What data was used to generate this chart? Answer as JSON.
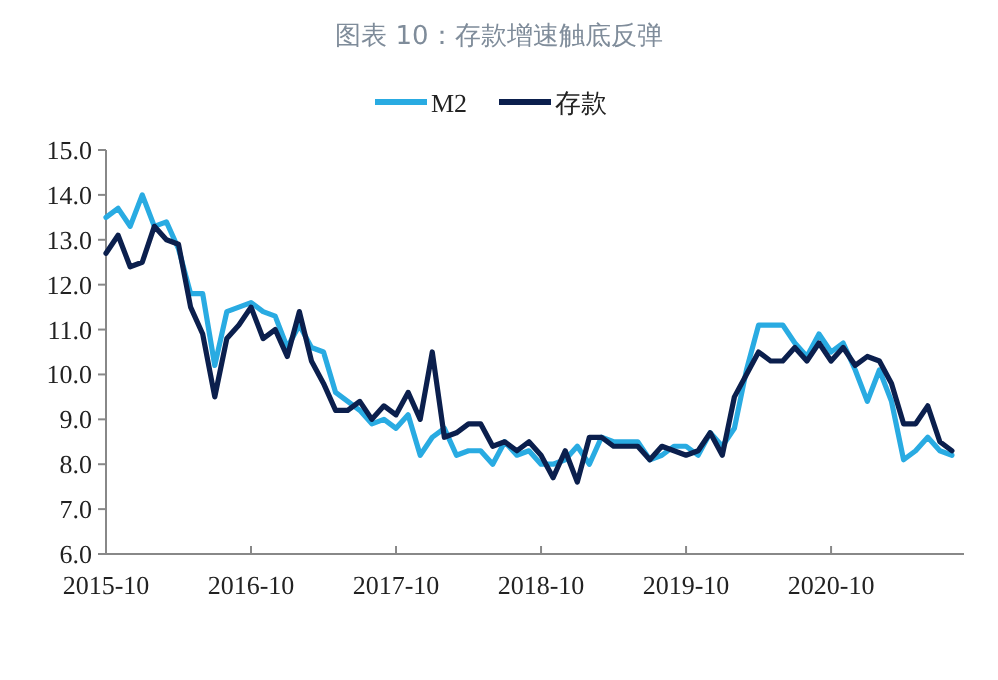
{
  "chart_data": {
    "type": "line",
    "title": "图表 10：存款增速触底反弹",
    "legend": "top",
    "x": [
      "2015-10",
      "2015-11",
      "2015-12",
      "2016-01",
      "2016-02",
      "2016-03",
      "2016-04",
      "2016-05",
      "2016-06",
      "2016-07",
      "2016-08",
      "2016-09",
      "2016-10",
      "2016-11",
      "2016-12",
      "2017-01",
      "2017-02",
      "2017-03",
      "2017-04",
      "2017-05",
      "2017-06",
      "2017-07",
      "2017-08",
      "2017-09",
      "2017-10",
      "2017-11",
      "2017-12",
      "2018-01",
      "2018-02",
      "2018-03",
      "2018-04",
      "2018-05",
      "2018-06",
      "2018-07",
      "2018-08",
      "2018-09",
      "2018-10",
      "2018-11",
      "2018-12",
      "2019-01",
      "2019-02",
      "2019-03",
      "2019-04",
      "2019-05",
      "2019-06",
      "2019-07",
      "2019-08",
      "2019-09",
      "2019-10",
      "2019-11",
      "2019-12",
      "2020-01",
      "2020-02",
      "2020-03",
      "2020-04",
      "2020-05",
      "2020-06",
      "2020-07",
      "2020-08",
      "2020-09",
      "2020-10",
      "2020-11",
      "2020-12",
      "2021-01",
      "2021-02",
      "2021-03",
      "2021-04",
      "2021-05",
      "2021-06",
      "2021-07",
      "2021-08"
    ],
    "xlim": [
      "2015-10",
      "2021-09"
    ],
    "xticks": [
      {
        "value": "2015-10",
        "label": "2015-10"
      },
      {
        "value": "2016-10",
        "label": "2016-10"
      },
      {
        "value": "2017-10",
        "label": "2017-10"
      },
      {
        "value": "2018-10",
        "label": "2018-10"
      },
      {
        "value": "2019-10",
        "label": "2019-10"
      },
      {
        "value": "2020-10",
        "label": "2020-10"
      }
    ],
    "ylim": [
      6,
      15
    ],
    "yticks": [
      {
        "value": 6,
        "label": "6.0"
      },
      {
        "value": 7,
        "label": "7.0"
      },
      {
        "value": 8,
        "label": "8.0"
      },
      {
        "value": 9,
        "label": "9.0"
      },
      {
        "value": 10,
        "label": "10.0"
      },
      {
        "value": 11,
        "label": "11.0"
      },
      {
        "value": 12,
        "label": "12.0"
      },
      {
        "value": 13,
        "label": "13.0"
      },
      {
        "value": 14,
        "label": "14.0"
      },
      {
        "value": 15,
        "label": "15.0"
      }
    ],
    "series": [
      {
        "name": "M2",
        "color": "#29abe2",
        "values": [
          13.5,
          13.7,
          13.3,
          14.0,
          13.3,
          13.4,
          12.8,
          11.8,
          11.8,
          10.2,
          11.4,
          11.5,
          11.6,
          11.4,
          11.3,
          10.6,
          11.1,
          10.6,
          10.5,
          9.6,
          9.4,
          9.2,
          8.9,
          9.0,
          8.8,
          9.1,
          8.2,
          8.6,
          8.8,
          8.2,
          8.3,
          8.3,
          8.0,
          8.5,
          8.2,
          8.3,
          8.0,
          8.0,
          8.1,
          8.4,
          8.0,
          8.6,
          8.5,
          8.5,
          8.5,
          8.1,
          8.2,
          8.4,
          8.4,
          8.2,
          8.7,
          8.4,
          8.8,
          10.1,
          11.1,
          11.1,
          11.1,
          10.7,
          10.4,
          10.9,
          10.5,
          10.7,
          10.1,
          9.4,
          10.1,
          9.4,
          8.1,
          8.3,
          8.6,
          8.3,
          8.2
        ]
      },
      {
        "name": "存款",
        "color": "#0b1f4d",
        "values": [
          12.7,
          13.1,
          12.4,
          12.5,
          13.3,
          13.0,
          12.9,
          11.5,
          10.9,
          9.5,
          10.8,
          11.1,
          11.5,
          10.8,
          11.0,
          10.4,
          11.4,
          10.3,
          9.8,
          9.2,
          9.2,
          9.4,
          9.0,
          9.3,
          9.1,
          9.6,
          9.0,
          10.5,
          8.6,
          8.7,
          8.9,
          8.9,
          8.4,
          8.5,
          8.3,
          8.5,
          8.2,
          7.7,
          8.3,
          7.6,
          8.6,
          8.6,
          8.4,
          8.4,
          8.4,
          8.1,
          8.4,
          8.3,
          8.2,
          8.3,
          8.7,
          8.2,
          9.5,
          10.0,
          10.5,
          10.3,
          10.3,
          10.6,
          10.3,
          10.7,
          10.3,
          10.6,
          10.2,
          10.4,
          10.3,
          9.8,
          8.9,
          8.9,
          9.3,
          8.5,
          8.3
        ]
      }
    ]
  }
}
